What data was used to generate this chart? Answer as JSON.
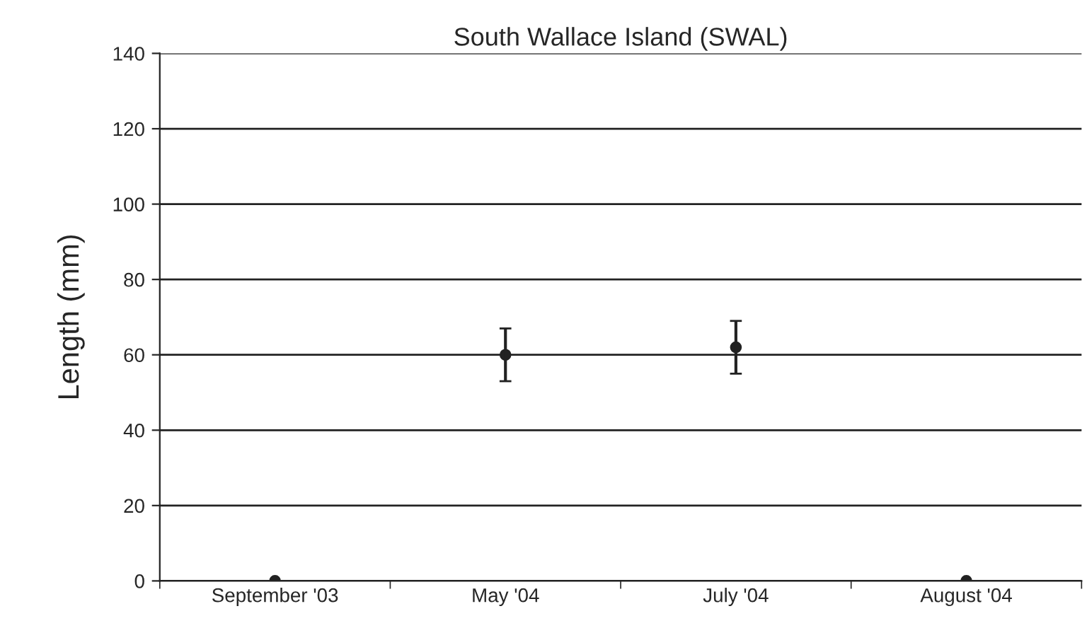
{
  "chart_data": {
    "type": "scatter",
    "title": "South Wallace Island (SWAL)",
    "ylabel": "Length (mm)",
    "categories": [
      "September '03",
      "May '04",
      "July '04",
      "August '04"
    ],
    "values": [
      0,
      60,
      62,
      0
    ],
    "errors": [
      null,
      [
        53,
        67
      ],
      [
        55,
        69
      ],
      null
    ],
    "color": "#222222",
    "marker": "circle",
    "ylim": [
      0,
      140
    ],
    "yticks": [
      0,
      20,
      40,
      60,
      80,
      100,
      120,
      140
    ],
    "grid": "y"
  }
}
